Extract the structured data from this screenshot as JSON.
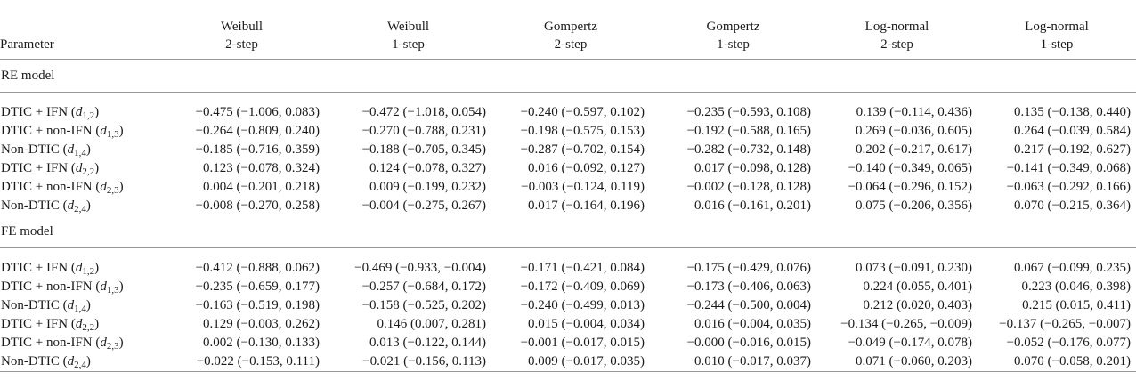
{
  "table": {
    "param_header": "Parameter",
    "columns": [
      {
        "line1": "Weibull",
        "line2": "2-step"
      },
      {
        "line1": "Weibull",
        "line2": "1-step"
      },
      {
        "line1": "Gompertz",
        "line2": "2-step"
      },
      {
        "line1": "Gompertz",
        "line2": "1-step"
      },
      {
        "line1": "Log-normal",
        "line2": "2-step"
      },
      {
        "line1": "Log-normal",
        "line2": "1-step"
      }
    ],
    "sections": [
      {
        "title": "RE model",
        "rows": [
          {
            "label": "DTIC + IFN",
            "sym": "d",
            "sub": "1,2",
            "values": [
              "−0.475 (−1.006, 0.083)",
              "−0.472 (−1.018, 0.054)",
              "−0.240 (−0.597, 0.102)",
              "−0.235 (−0.593, 0.108)",
              "0.139 (−0.114, 0.436)",
              "0.135 (−0.138, 0.440)"
            ]
          },
          {
            "label": "DTIC + non-IFN",
            "sym": "d",
            "sub": "1,3",
            "values": [
              "−0.264 (−0.809, 0.240)",
              "−0.270 (−0.788, 0.231)",
              "−0.198 (−0.575, 0.153)",
              "−0.192 (−0.588, 0.165)",
              "0.269 (−0.036, 0.605)",
              "0.264 (−0.039, 0.584)"
            ]
          },
          {
            "label": "Non-DTIC",
            "sym": "d",
            "sub": "1,4",
            "values": [
              "−0.185 (−0.716, 0.359)",
              "−0.188 (−0.705, 0.345)",
              "−0.287 (−0.702, 0.154)",
              "−0.282 (−0.732, 0.148)",
              "0.202 (−0.217, 0.617)",
              "0.217 (−0.192, 0.627)"
            ]
          },
          {
            "label": "DTIC + IFN",
            "sym": "d",
            "sub": "2,2",
            "values": [
              "0.123 (−0.078, 0.324)",
              "0.124 (−0.078, 0.327)",
              "0.016 (−0.092, 0.127)",
              "0.017 (−0.098, 0.128)",
              "−0.140 (−0.349, 0.065)",
              "−0.141 (−0.349, 0.068)"
            ]
          },
          {
            "label": "DTIC + non-IFN",
            "sym": "d",
            "sub": "2,3",
            "values": [
              "0.004 (−0.201, 0.218)",
              "0.009 (−0.199, 0.232)",
              "−0.003 (−0.124, 0.119)",
              "−0.002 (−0.128, 0.128)",
              "−0.064 (−0.296, 0.152)",
              "−0.063 (−0.292, 0.166)"
            ]
          },
          {
            "label": "Non-DTIC",
            "sym": "d",
            "sub": "2,4",
            "values": [
              "−0.008 (−0.270, 0.258)",
              "−0.004 (−0.275, 0.267)",
              "0.017 (−0.164, 0.196)",
              "0.016 (−0.161, 0.201)",
              "0.075 (−0.206, 0.356)",
              "0.070 (−0.215, 0.364)"
            ]
          }
        ]
      },
      {
        "title": "FE model",
        "rows": [
          {
            "label": "DTIC + IFN",
            "sym": "d",
            "sub": "1,2",
            "values": [
              "−0.412 (−0.888, 0.062)",
              "−0.469 (−0.933, −0.004)",
              "−0.171 (−0.421, 0.084)",
              "−0.175 (−0.429, 0.076)",
              "0.073 (−0.091, 0.230)",
              "0.067 (−0.099, 0.235)"
            ]
          },
          {
            "label": "DTIC + non-IFN",
            "sym": "d",
            "sub": "1,3",
            "values": [
              "−0.235 (−0.659, 0.177)",
              "−0.257 (−0.684, 0.172)",
              "−0.172 (−0.409, 0.069)",
              "−0.173 (−0.406, 0.063)",
              "0.224 (0.055, 0.401)",
              "0.223 (0.046, 0.398)"
            ]
          },
          {
            "label": "Non-DTIC",
            "sym": "d",
            "sub": "1,4",
            "values": [
              "−0.163 (−0.519, 0.198)",
              "−0.158 (−0.525, 0.202)",
              "−0.240 (−0.499, 0.013)",
              "−0.244 (−0.500, 0.004)",
              "0.212 (0.020, 0.403)",
              "0.215 (0.015, 0.411)"
            ]
          },
          {
            "label": "DTIC + IFN",
            "sym": "d",
            "sub": "2,2",
            "values": [
              "0.129 (−0.003, 0.262)",
              "0.146 (0.007, 0.281)",
              "0.015 (−0.004, 0.034)",
              "0.016 (−0.004, 0.035)",
              "−0.134 (−0.265, −0.009)",
              "−0.137 (−0.265, −0.007)"
            ]
          },
          {
            "label": "DTIC + non-IFN",
            "sym": "d",
            "sub": "2,3",
            "values": [
              "0.002 (−0.130, 0.133)",
              "0.013 (−0.122, 0.144)",
              "−0.001 (−0.017, 0.015)",
              "−0.000 (−0.016, 0.015)",
              "−0.049 (−0.174, 0.078)",
              "−0.052 (−0.176, 0.077)"
            ]
          },
          {
            "label": "Non-DTIC",
            "sym": "d",
            "sub": "2,4",
            "values": [
              "−0.022 (−0.153, 0.111)",
              "−0.021 (−0.156, 0.113)",
              "0.009 (−0.017, 0.035)",
              "0.010 (−0.017, 0.037)",
              "0.071 (−0.060, 0.203)",
              "0.070 (−0.058, 0.201)"
            ]
          }
        ]
      }
    ]
  }
}
